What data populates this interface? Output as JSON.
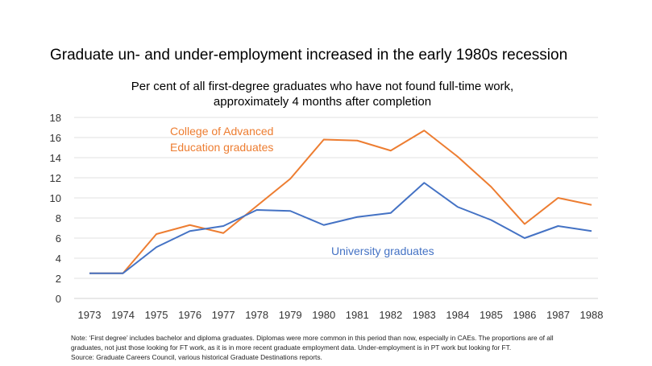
{
  "title": "Graduate un- and under-employment increased in the early 1980s recession",
  "chart_data": {
    "type": "line",
    "title": "Per cent of all first-degree graduates who have not found full-time work, approximately 4 months after completion",
    "categories": [
      "1973",
      "1974",
      "1975",
      "1976",
      "1977",
      "1978",
      "1979",
      "1980",
      "1981",
      "1982",
      "1983",
      "1984",
      "1985",
      "1986",
      "1987",
      "1988"
    ],
    "ylim": [
      0,
      18
    ],
    "yticks": [
      0,
      2,
      4,
      6,
      8,
      10,
      12,
      14,
      16,
      18
    ],
    "grid": true,
    "series": [
      {
        "name": "College of Advanced Education graduates",
        "label_lines": [
          "College of Advanced",
          "Education graduates"
        ],
        "color": "#ED7D31",
        "values": [
          2.5,
          2.5,
          6.4,
          7.3,
          6.5,
          9.2,
          11.9,
          15.8,
          15.7,
          14.7,
          16.7,
          14.1,
          11.1,
          7.4,
          10.0,
          9.3
        ]
      },
      {
        "name": "University graduates",
        "label_lines": [
          "University graduates"
        ],
        "color": "#4472C4",
        "values": [
          2.5,
          2.5,
          5.1,
          6.7,
          7.2,
          8.8,
          8.7,
          7.3,
          8.1,
          8.5,
          11.5,
          9.1,
          7.8,
          6.0,
          7.2,
          6.7
        ]
      }
    ]
  },
  "notes": [
    "Note: ‘First degree’ includes bachelor and diploma graduates. Diplomas were more common  in this period than now, especially in CAEs. The proportions  are of all",
    "graduates, not just those looking for FT work,  as it is in more recent graduate employment  data. Under-employment  is in PT work but looking for FT.",
    "Source:  Graduate Careers Council, various historical Graduate Destinations reports."
  ]
}
